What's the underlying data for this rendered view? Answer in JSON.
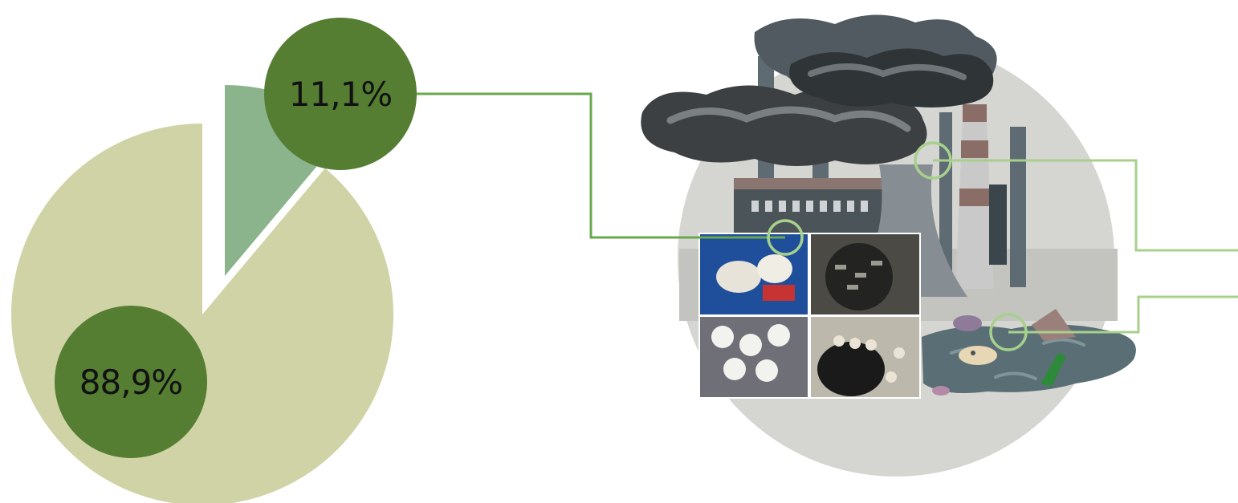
{
  "chart_data": {
    "type": "pie",
    "exploded": true,
    "slices": [
      {
        "label": "88,9%",
        "value": 88.9,
        "color": "#d0d3a5"
      },
      {
        "label": "11,1%",
        "value": 11.1,
        "color": "#8bb38c"
      }
    ]
  },
  "colors": {
    "badge": "#557e33",
    "connector": "#6aa84f",
    "connector_light": "#a8d08d",
    "illustration_circle": "#d5d5d1",
    "smoke": "#3c4043",
    "water": "#5a6f75"
  },
  "icons": {
    "illustration": "factory-pollution-icon",
    "waste_photos": "hazardous-waste-photo-icon"
  }
}
